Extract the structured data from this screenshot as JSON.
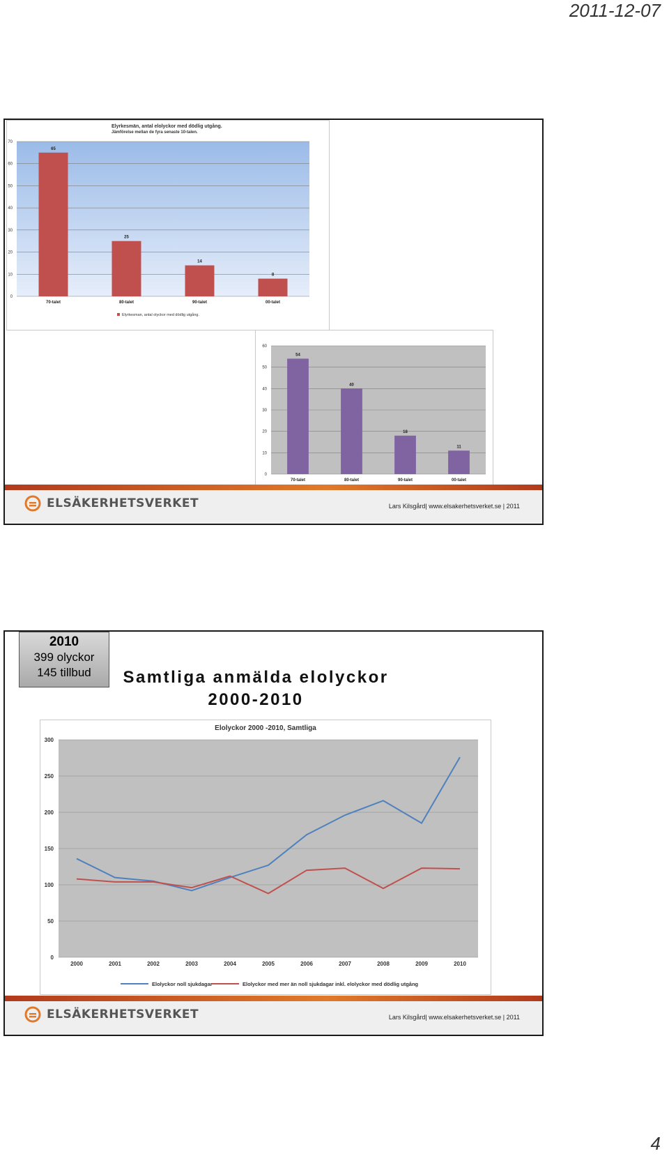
{
  "header": {
    "date": "2011-12-07"
  },
  "page_number": "4",
  "footer": {
    "logo_text": "ELSÄKERHETSVERKET",
    "credit": "Lars Kilsgård| www.elsakerhetsverket.se | 2011"
  },
  "colors": {
    "red": "#c0504d",
    "purple": "#8064a2",
    "blue": "#4f81bd",
    "accent": "#e07a2a"
  },
  "slide2": {
    "stat_year": "2010",
    "stat_line1": "399 olyckor",
    "stat_line2": "145 tillbud",
    "title_line1": "Samtliga anmälda elolyckor",
    "title_line2": "2000-2010"
  },
  "chart_data": [
    {
      "type": "bar",
      "title": "Elyrkesmän, antal elolyckor med dödlig utgång.",
      "subtitle": "Jämförelse mellan de fyra senaste 10-talen.",
      "categories": [
        "70-talet",
        "80-talet",
        "90-talet",
        "00-talet"
      ],
      "values": [
        65,
        25,
        14,
        8
      ],
      "ylim": [
        0,
        70
      ],
      "yticks": [
        0,
        10,
        20,
        30,
        40,
        50,
        60,
        70
      ],
      "legend": "Elyrkesman, antal olyckor med dödlig utgång.",
      "grid": true
    },
    {
      "type": "bar",
      "categories": [
        "70-talet",
        "80-talet",
        "90-talet",
        "00-talet"
      ],
      "values": [
        54,
        40,
        18,
        11
      ],
      "ylim": [
        0,
        60
      ],
      "yticks": [
        0,
        10,
        20,
        30,
        40,
        50,
        60
      ],
      "grid": true
    },
    {
      "type": "line",
      "title": "Elolyckor 2000 -2010, Samtliga",
      "x": [
        "2000",
        "2001",
        "2002",
        "2003",
        "2004",
        "2005",
        "2006",
        "2007",
        "2008",
        "2009",
        "2010"
      ],
      "series": [
        {
          "name": "Elolyckor noll sjukdagar",
          "color": "#4f81bd",
          "values": [
            136,
            110,
            105,
            92,
            110,
            127,
            169,
            196,
            216,
            185,
            276
          ]
        },
        {
          "name": "Elolyckor med mer än noll sjukdagar inkl. elolyckor med dödlig utgång",
          "color": "#c0504d",
          "values": [
            108,
            104,
            104,
            96,
            112,
            88,
            120,
            123,
            95,
            123,
            122
          ]
        }
      ],
      "ylim": [
        0,
        300
      ],
      "yticks": [
        0,
        50,
        100,
        150,
        200,
        250,
        300
      ],
      "legend_position": "bottom",
      "grid": true
    }
  ]
}
